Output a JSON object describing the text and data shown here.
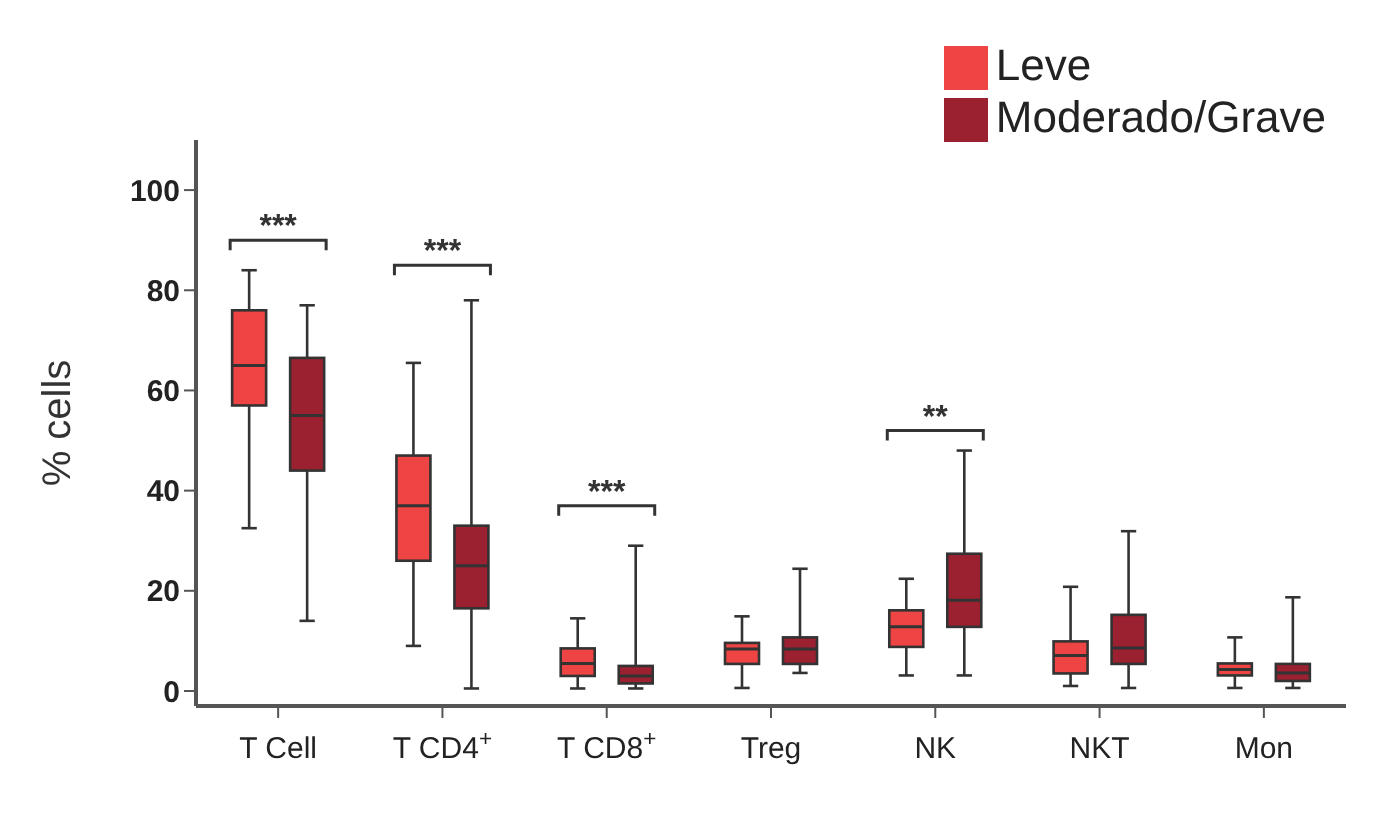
{
  "chart_data": {
    "type": "box",
    "ylabel": "% cells",
    "categories": [
      "T Cell",
      "T CD4$^{+}$",
      "T CD8$^{+}$",
      "Treg",
      "NK",
      "NKT",
      "Mon"
    ],
    "ylim": [
      -3,
      110
    ],
    "yticks": [
      0,
      20,
      40,
      60,
      80,
      100
    ],
    "legend": "top right",
    "series": [
      {
        "name": "Leve",
        "color": "#ee4444",
        "boxes": [
          {
            "low": 32.5,
            "q1": 57,
            "median": 65,
            "q3": 76,
            "high": 84
          },
          {
            "low": 9,
            "q1": 26,
            "median": 37,
            "q3": 47,
            "high": 65.5
          },
          {
            "low": 0.5,
            "q1": 3,
            "median": 5.5,
            "q3": 8.5,
            "high": 14.5
          },
          {
            "low": 0.6,
            "q1": 5.4,
            "median": 8.4,
            "q3": 9.6,
            "high": 14.9
          },
          {
            "low": 3.1,
            "q1": 8.8,
            "median": 12.8,
            "q3": 16.1,
            "high": 22.4
          },
          {
            "low": 1,
            "q1": 3.5,
            "median": 7.1,
            "q3": 9.9,
            "high": 20.8
          },
          {
            "low": 0.6,
            "q1": 3.1,
            "median": 4.3,
            "q3": 5.5,
            "high": 10.7
          }
        ]
      },
      {
        "name": "Moderado/Grave",
        "color": "#9b2030",
        "boxes": [
          {
            "low": 14,
            "q1": 44,
            "median": 55,
            "q3": 66.5,
            "high": 77
          },
          {
            "low": 0.5,
            "q1": 16.5,
            "median": 25,
            "q3": 33,
            "high": 78
          },
          {
            "low": 0.5,
            "q1": 1.5,
            "median": 3,
            "q3": 5,
            "high": 29
          },
          {
            "low": 3.6,
            "q1": 5.4,
            "median": 8.4,
            "q3": 10.7,
            "high": 24.4
          },
          {
            "low": 3.1,
            "q1": 12.8,
            "median": 18.1,
            "q3": 27.4,
            "high": 48
          },
          {
            "low": 0.6,
            "q1": 5.4,
            "median": 8.6,
            "q3": 15.2,
            "high": 31.9
          },
          {
            "low": 0.6,
            "q1": 2,
            "median": 3.6,
            "q3": 5.4,
            "high": 18.7
          }
        ]
      }
    ],
    "annotations": [
      "***",
      "***",
      "***",
      "**"
    ]
  }
}
